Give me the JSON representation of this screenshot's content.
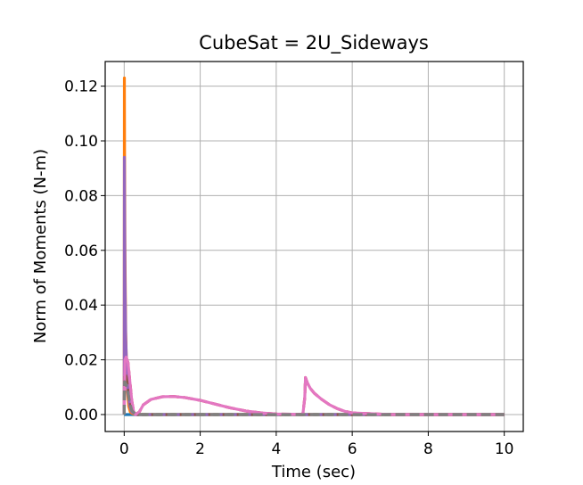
{
  "chart_data": {
    "type": "line",
    "title": "CubeSat = 2U_Sideways",
    "xlabel": "Time (sec)",
    "ylabel": "Norm of Moments (N-m)",
    "xlim": [
      -0.5,
      10.5
    ],
    "ylim": [
      -0.0062,
      0.129
    ],
    "xticks": [
      0,
      2,
      4,
      6,
      8,
      10
    ],
    "yticks": [
      0.0,
      0.02,
      0.04,
      0.06,
      0.08,
      0.1,
      0.12
    ],
    "ytick_labels": [
      "0.00",
      "0.02",
      "0.04",
      "0.06",
      "0.08",
      "0.10",
      "0.12"
    ],
    "grid": true,
    "legend": "none",
    "series": [
      {
        "color": "#1f77b4",
        "dash": "solid",
        "x": [
          0,
          0.02,
          0.05,
          0.1,
          0.2,
          10
        ],
        "y": [
          0,
          0.0,
          0.0,
          0.0,
          0.0,
          0.0
        ]
      },
      {
        "color": "#ff7f0e",
        "dash": "solid",
        "x": [
          0,
          0.005,
          0.01,
          0.02,
          0.04,
          0.06,
          0.09,
          0.12,
          0.16,
          0.2,
          0.25,
          0.3,
          0.5,
          1.0,
          10
        ],
        "y": [
          0,
          0.123,
          0.095,
          0.06,
          0.03,
          0.018,
          0.008,
          0.003,
          0.001,
          0.0005,
          0.0002,
          0.0001,
          0.0,
          0.0,
          0.0
        ]
      },
      {
        "color": "#2ca02c",
        "dash": "dashed",
        "x": [
          0,
          0.01,
          0.03,
          0.05,
          0.08,
          0.12,
          0.15,
          0.2,
          0.3,
          10
        ],
        "y": [
          0,
          0.018,
          0.022,
          0.02,
          0.016,
          0.01,
          0.005,
          0.002,
          0.0,
          0.0
        ]
      },
      {
        "color": "#d62728",
        "dash": "dashed",
        "x": [
          0,
          0.02,
          0.05,
          0.1,
          0.15,
          0.2,
          0.25,
          0.3,
          0.4,
          0.5,
          0.7,
          1.0,
          1.3,
          1.6,
          2.0,
          2.4,
          2.8,
          3.2,
          3.6,
          4.0,
          4.4,
          4.7,
          4.75,
          4.77,
          4.82,
          4.9,
          5.0,
          5.2,
          5.4,
          5.6,
          5.8,
          6.0,
          7.0,
          8.0,
          9.0,
          10.0
        ],
        "y": [
          0,
          0.02,
          0.021,
          0.019,
          0.012,
          0.005,
          0.001,
          0.0,
          0.001,
          0.0035,
          0.0055,
          0.0065,
          0.0066,
          0.0062,
          0.0052,
          0.0038,
          0.0024,
          0.0013,
          0.0006,
          0.0002,
          0.0001,
          0.0,
          0.006,
          0.0135,
          0.0115,
          0.0095,
          0.0078,
          0.0055,
          0.0036,
          0.0022,
          0.0012,
          0.0006,
          0.0,
          0.0,
          0.0,
          0.0
        ]
      },
      {
        "color": "#9467bd",
        "dash": "solid",
        "x": [
          0,
          0.005,
          0.01,
          0.02,
          0.04,
          0.07,
          0.1,
          0.15,
          0.2,
          0.3,
          10
        ],
        "y": [
          0,
          0.094,
          0.075,
          0.05,
          0.028,
          0.015,
          0.008,
          0.003,
          0.001,
          0.0,
          0.0
        ]
      },
      {
        "color": "#8c564b",
        "dash": "dashed",
        "x": [
          0,
          0.01,
          0.05,
          0.1,
          0.15,
          0.2,
          0.3,
          0.5,
          1.0,
          2.0,
          3.0,
          4.0,
          4.7,
          4.75,
          4.77,
          4.85,
          5.0,
          5.5,
          6.0,
          10.0
        ],
        "y": [
          0,
          0.015,
          0.014,
          0.01,
          0.005,
          0.002,
          0.0,
          0.0,
          0.0,
          0.0,
          0.0,
          0.0,
          0.0,
          0.0,
          0.0,
          0.0,
          0.0,
          0.0,
          0.0,
          0.0
        ]
      },
      {
        "color": "#e377c2",
        "dash": "solid",
        "x": [
          0,
          0.02,
          0.05,
          0.1,
          0.15,
          0.2,
          0.25,
          0.3,
          0.4,
          0.5,
          0.7,
          1.0,
          1.3,
          1.6,
          2.0,
          2.4,
          2.8,
          3.2,
          3.6,
          4.0,
          4.4,
          4.7,
          4.75,
          4.77,
          4.82,
          4.9,
          5.0,
          5.2,
          5.4,
          5.6,
          5.8,
          6.0,
          7.0,
          8.0,
          9.0,
          10.0
        ],
        "y": [
          0,
          0.02,
          0.021,
          0.019,
          0.012,
          0.005,
          0.001,
          0.0,
          0.001,
          0.0035,
          0.0055,
          0.0065,
          0.0066,
          0.0062,
          0.0052,
          0.0038,
          0.0024,
          0.0013,
          0.0006,
          0.0002,
          0.0001,
          0.0,
          0.006,
          0.0135,
          0.0115,
          0.0095,
          0.0078,
          0.0055,
          0.0036,
          0.0022,
          0.0012,
          0.0006,
          0.0,
          0.0,
          0.0,
          0.0
        ]
      },
      {
        "color": "#7f7f7f",
        "dash": "dashed",
        "x": [
          0,
          0.01,
          0.05,
          0.1,
          0.15,
          0.2,
          0.3,
          0.5,
          1.0,
          10.0
        ],
        "y": [
          0,
          0.012,
          0.011,
          0.008,
          0.004,
          0.0015,
          0.0,
          0.0,
          0.0,
          0.0
        ]
      }
    ]
  }
}
